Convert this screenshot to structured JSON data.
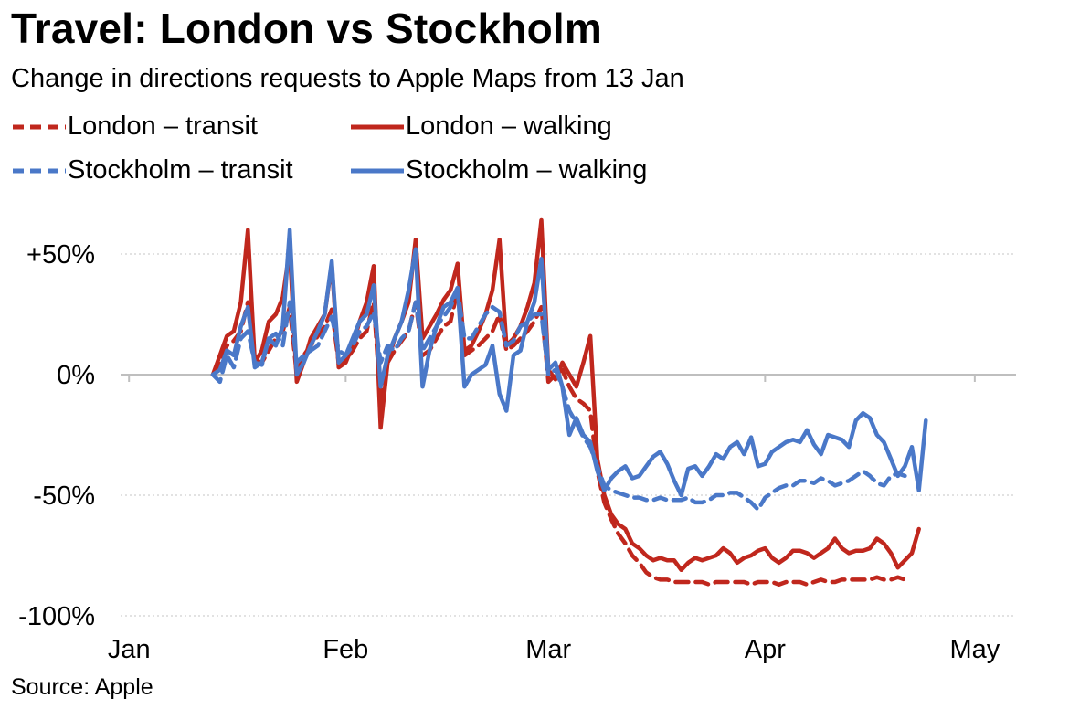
{
  "title": "Travel: London vs Stockholm",
  "subtitle": "Change in directions requests to Apple Maps from 13 Jan",
  "source": "Source: Apple",
  "colors": {
    "london": "#c0271d",
    "stockholm": "#4a78c8",
    "grid": "#d9d9d9",
    "axis": "#bfbfbf"
  },
  "chart_data": {
    "type": "line",
    "title": "Travel: London vs Stockholm",
    "subtitle": "Change in directions requests to Apple Maps from 13 Jan",
    "xlabel": "",
    "ylabel": "",
    "x_start": "13 Jan",
    "x_unit": "day",
    "x_ticks": [
      {
        "label": "Jan",
        "day": -12
      },
      {
        "label": "Feb",
        "day": 19
      },
      {
        "label": "Mar",
        "day": 48
      },
      {
        "label": "Apr",
        "day": 79
      },
      {
        "label": "May",
        "day": 109
      }
    ],
    "y_ticks": [
      {
        "label": "+50%",
        "value": 50
      },
      {
        "label": "0%",
        "value": 0
      },
      {
        "label": "-50%",
        "value": -50
      },
      {
        "label": "-100%",
        "value": -100
      }
    ],
    "xlim": [
      -12,
      110
    ],
    "ylim": [
      -100,
      70
    ],
    "grid": true,
    "legend_position": "top",
    "series": [
      {
        "name": "London – transit",
        "color": "#c0271d",
        "dash": true,
        "values": [
          0,
          5,
          12,
          14,
          18,
          30,
          6,
          5,
          10,
          15,
          18,
          28,
          0,
          8,
          12,
          16,
          20,
          27,
          5,
          6,
          10,
          15,
          18,
          30,
          -12,
          5,
          10,
          14,
          18,
          30,
          8,
          10,
          15,
          20,
          22,
          35,
          8,
          10,
          12,
          15,
          18,
          25,
          10,
          12,
          15,
          18,
          22,
          28,
          -3,
          0,
          2,
          -5,
          -10,
          -12,
          -15,
          -40,
          -53,
          -60,
          -66,
          -70,
          -75,
          -78,
          -82,
          -84,
          -85,
          -85,
          -86,
          -86,
          -86,
          -86,
          -86,
          -87,
          -86,
          -86,
          -86,
          -86,
          -86,
          -87,
          -86,
          -86,
          -86,
          -87,
          -86,
          -86,
          -86,
          -87,
          -86,
          -85,
          -86,
          -86,
          -85,
          -85,
          -85,
          -85,
          -85,
          -84,
          -85,
          -85,
          -84,
          -85
        ]
      },
      {
        "name": "London – walking",
        "color": "#c0271d",
        "dash": false,
        "values": [
          0,
          8,
          16,
          18,
          30,
          60,
          5,
          10,
          22,
          25,
          32,
          52,
          -3,
          5,
          15,
          20,
          25,
          46,
          3,
          5,
          12,
          22,
          30,
          45,
          -22,
          5,
          15,
          22,
          30,
          56,
          15,
          20,
          25,
          31,
          35,
          46,
          10,
          12,
          18,
          25,
          35,
          56,
          12,
          15,
          20,
          28,
          38,
          64,
          2,
          -2,
          5,
          0,
          -5,
          5,
          16,
          -35,
          -50,
          -58,
          -62,
          -64,
          -70,
          -72,
          -75,
          -77,
          -76,
          -77,
          -77,
          -81,
          -78,
          -76,
          -77,
          -76,
          -75,
          -72,
          -74,
          -78,
          -76,
          -75,
          -73,
          -72,
          -76,
          -78,
          -76,
          -73,
          -73,
          -74,
          -76,
          -74,
          -72,
          -68,
          -72,
          -74,
          -73,
          -73,
          -72,
          -68,
          -70,
          -74,
          -80,
          -77,
          -74,
          -64
        ]
      },
      {
        "name": "Stockholm – transit",
        "color": "#4a78c8",
        "dash": true,
        "values": [
          0,
          -3,
          8,
          3,
          15,
          18,
          5,
          4,
          15,
          17,
          12,
          30,
          5,
          8,
          10,
          12,
          18,
          24,
          10,
          8,
          12,
          18,
          20,
          26,
          5,
          12,
          10,
          15,
          18,
          30,
          10,
          15,
          20,
          24,
          28,
          35,
          15,
          15,
          20,
          25,
          28,
          26,
          12,
          14,
          20,
          22,
          25,
          25,
          0,
          2,
          -5,
          -15,
          -20,
          -26,
          -30,
          -38,
          -46,
          -48,
          -49,
          -50,
          -51,
          -51,
          -52,
          -52,
          -51,
          -52,
          -52,
          -52,
          -51,
          -53,
          -53,
          -52,
          -50,
          -50,
          -49,
          -49,
          -51,
          -53,
          -56,
          -51,
          -49,
          -47,
          -46,
          -46,
          -44,
          -44,
          -45,
          -43,
          -44,
          -46,
          -45,
          -44,
          -42,
          -40,
          -42,
          -45,
          -46,
          -42,
          -41,
          -42
        ]
      },
      {
        "name": "Stockholm – walking",
        "color": "#4a78c8",
        "dash": false,
        "values": [
          0,
          2,
          10,
          8,
          20,
          28,
          3,
          5,
          15,
          12,
          20,
          60,
          0,
          5,
          12,
          18,
          25,
          47,
          5,
          8,
          15,
          22,
          25,
          37,
          -5,
          8,
          15,
          22,
          35,
          52,
          -5,
          10,
          20,
          28,
          30,
          36,
          -5,
          0,
          2,
          4,
          12,
          -8,
          -15,
          8,
          10,
          22,
          30,
          48,
          2,
          5,
          -5,
          -25,
          -18,
          -25,
          -28,
          -40,
          -48,
          -43,
          -40,
          -38,
          -43,
          -42,
          -38,
          -34,
          -32,
          -37,
          -44,
          -50,
          -39,
          -38,
          -42,
          -38,
          -33,
          -35,
          -30,
          -28,
          -33,
          -26,
          -38,
          -37,
          -32,
          -30,
          -28,
          -27,
          -28,
          -23,
          -29,
          -33,
          -25,
          -26,
          -27,
          -30,
          -19,
          -16,
          -18,
          -25,
          -28,
          -35,
          -42,
          -38,
          -30,
          -48,
          -19
        ]
      }
    ]
  }
}
